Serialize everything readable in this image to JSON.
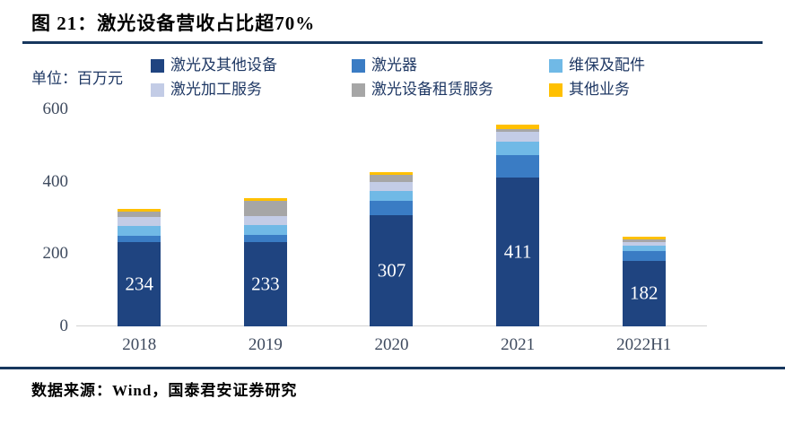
{
  "figure": {
    "title": "图 21：激光设备营收占比超70%",
    "unit_label": "单位：百万元",
    "source": "数据来源：Wind，国泰君安证券研究"
  },
  "colors": {
    "navy": "#1F4480",
    "blue": "#3A7CC4",
    "lightblue": "#70B9E6",
    "lavender": "#C3CCE6",
    "gray": "#A6A6A6",
    "yellow": "#FFC000",
    "rule": "#17375E",
    "axis_text": "#3E4A5E",
    "legend_text": "#1F3864",
    "axis_line": "#D2D2D2",
    "bar_label": "#FFFFFF"
  },
  "chart_data": {
    "type": "bar",
    "stacked": true,
    "title": "图 21：激光设备营收占比超70%",
    "unit": "百万元",
    "categories": [
      "2018",
      "2019",
      "2020",
      "2021",
      "2022H1"
    ],
    "series": [
      {
        "name": "激光及其他设备",
        "color_key": "navy",
        "values": [
          234,
          233,
          307,
          411,
          182
        ],
        "labeled": true
      },
      {
        "name": "激光器",
        "color_key": "blue",
        "values": [
          17,
          21,
          39,
          62,
          26
        ]
      },
      {
        "name": "维保及配件",
        "color_key": "lightblue",
        "values": [
          27,
          25,
          29,
          39,
          15
        ]
      },
      {
        "name": "激光加工服务",
        "color_key": "lavender",
        "values": [
          25,
          27,
          25,
          27,
          10
        ]
      },
      {
        "name": "激光设备租赁服务",
        "color_key": "gray",
        "values": [
          15,
          41,
          18,
          7,
          8
        ]
      },
      {
        "name": "其他业务",
        "color_key": "yellow",
        "values": [
          8,
          7,
          9,
          11,
          8
        ]
      }
    ],
    "bar_labels": [
      "234",
      "233",
      "307",
      "411",
      "182"
    ],
    "xlabel": "",
    "ylabel": "",
    "yticks": [
      0,
      200,
      400,
      600
    ],
    "ylim": [
      0,
      600
    ],
    "grid": false,
    "legend_position": "top",
    "legend_rows": [
      [
        0,
        1,
        2
      ],
      [
        3,
        4,
        5
      ]
    ]
  }
}
